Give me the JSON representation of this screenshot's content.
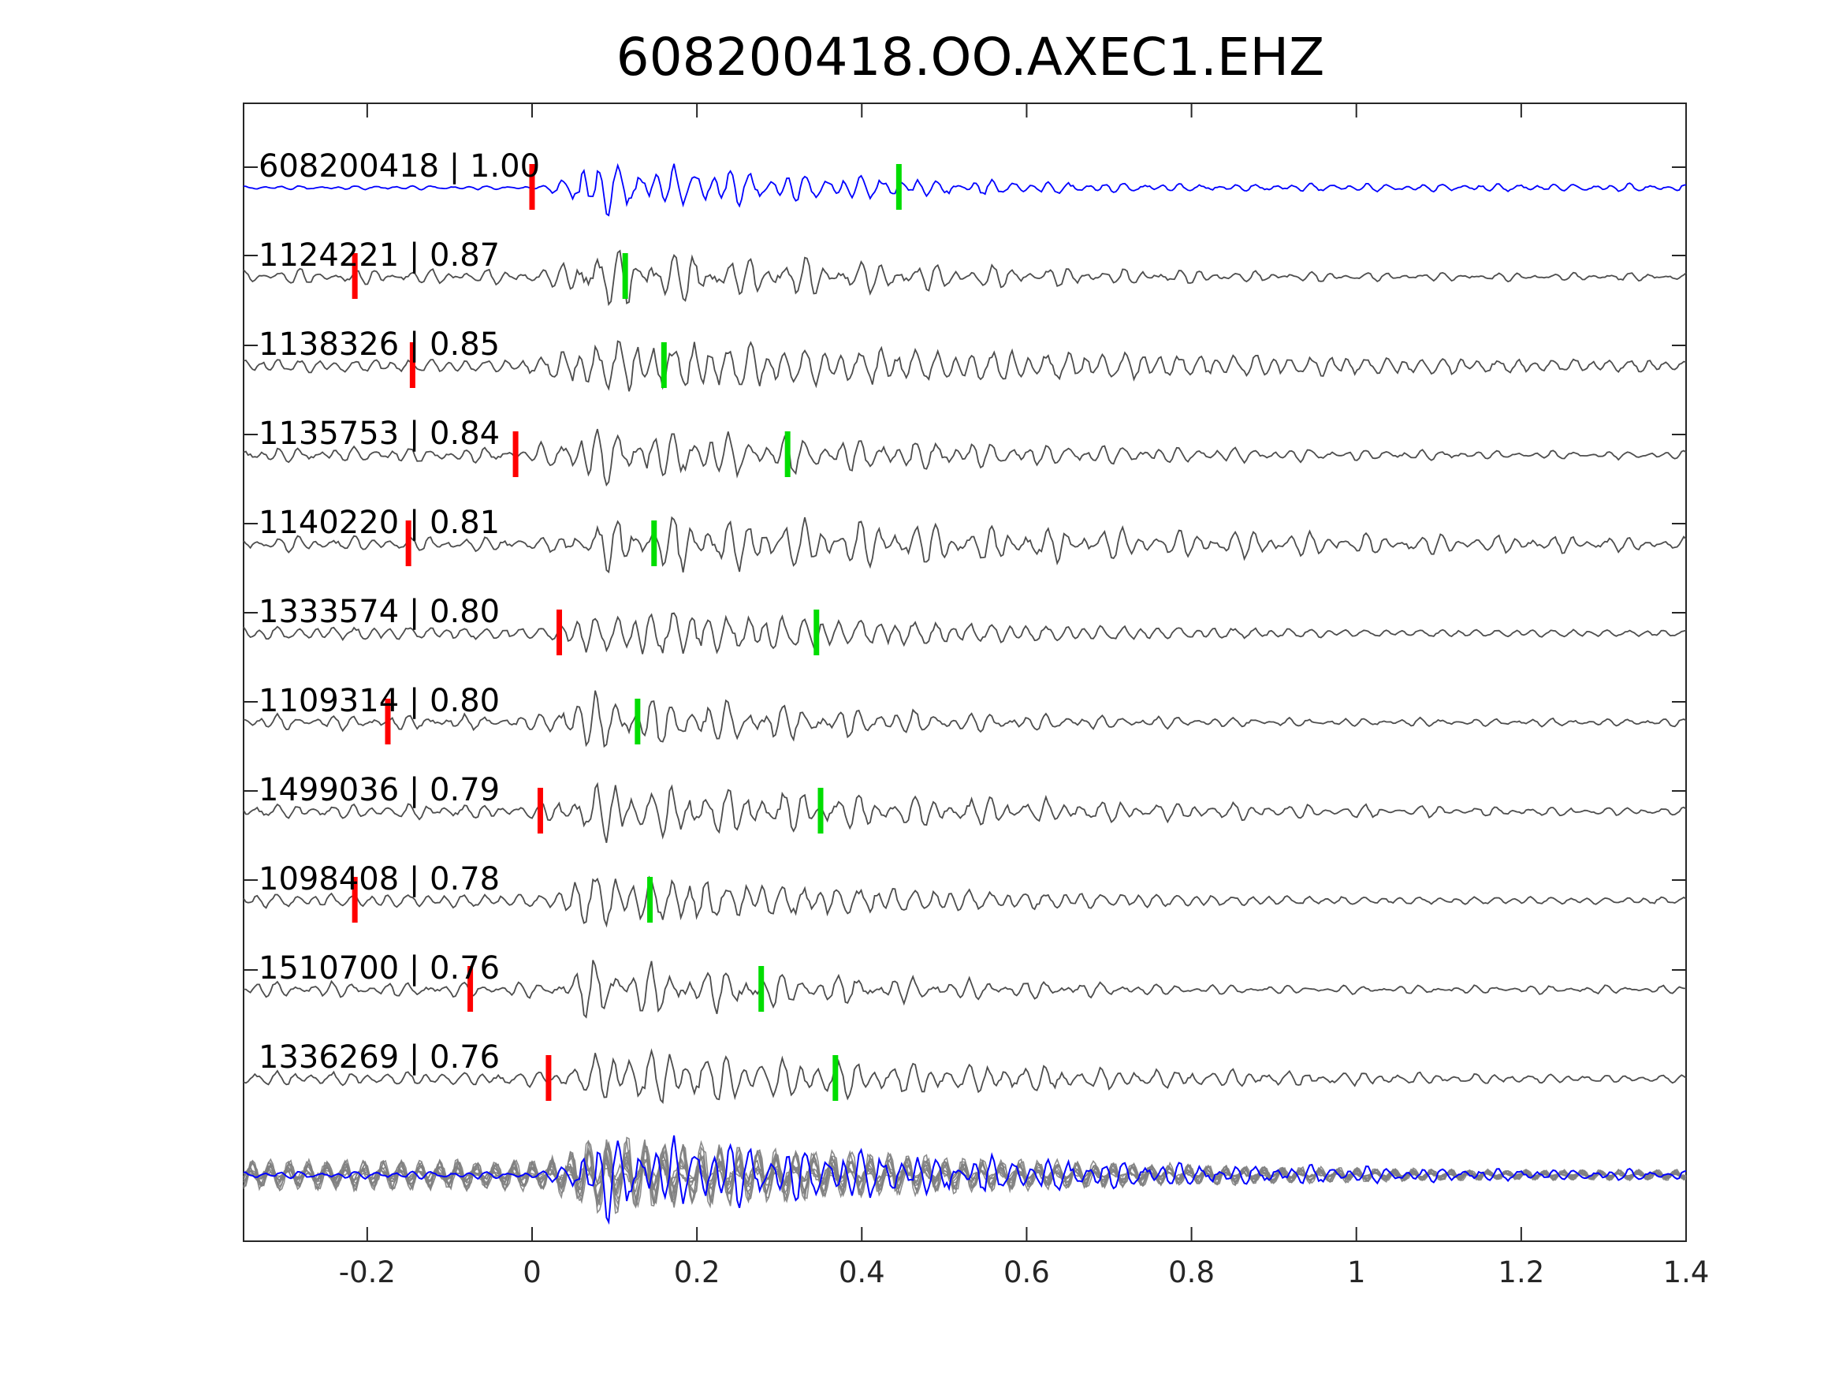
{
  "chart_data": {
    "type": "line",
    "title": "608200418.OO.AXEC1.EHZ",
    "xlabel": "",
    "ylabel": "",
    "xlim": [
      -0.35,
      1.4
    ],
    "x_ticks": [
      -0.2,
      0,
      0.2,
      0.4,
      0.6,
      0.8,
      1,
      1.2,
      1.4
    ],
    "x_tick_labels": [
      "-0.2",
      "0",
      "0.2",
      "0.4",
      "0.6",
      "0.8",
      "1",
      "1.2",
      "1.4"
    ],
    "grid": false,
    "colors": {
      "template": "#0000ff",
      "match": "#4d4d4d",
      "stack": "#808080",
      "p_pick": "#ff0000",
      "s_pick": "#00dd00"
    },
    "series": [
      {
        "label": "608200418 | 1.00",
        "p_pick": 0.0,
        "s_pick": 0.445,
        "onset": 0.02,
        "decay_end": 0.6
      },
      {
        "label": "1124221 | 0.87",
        "p_pick": -0.215,
        "s_pick": 0.113,
        "onset": 0.02,
        "decay_end": 0.8
      },
      {
        "label": "1138326 | 0.85",
        "p_pick": -0.145,
        "s_pick": 0.16,
        "onset": -0.01,
        "decay_end": 1.4
      },
      {
        "label": "1135753 | 0.84",
        "p_pick": -0.02,
        "s_pick": 0.31,
        "onset": 0.0,
        "decay_end": 0.9
      },
      {
        "label": "1140220 | 0.81",
        "p_pick": -0.15,
        "s_pick": 0.148,
        "onset": 0.02,
        "decay_end": 1.4
      },
      {
        "label": "1333574 | 0.80",
        "p_pick": 0.033,
        "s_pick": 0.345,
        "onset": 0.03,
        "decay_end": 0.8
      },
      {
        "label": "1109314 | 0.80",
        "p_pick": -0.175,
        "s_pick": 0.128,
        "onset": 0.01,
        "decay_end": 0.7
      },
      {
        "label": "1499036 | 0.79",
        "p_pick": 0.01,
        "s_pick": 0.35,
        "onset": 0.01,
        "decay_end": 1.0
      },
      {
        "label": "1098408 | 0.78",
        "p_pick": -0.215,
        "s_pick": 0.143,
        "onset": 0.02,
        "decay_end": 0.8
      },
      {
        "label": "1510700 | 0.76",
        "p_pick": -0.075,
        "s_pick": 0.278,
        "onset": 0.02,
        "decay_end": 0.7
      },
      {
        "label": "1336269 | 0.76",
        "p_pick": 0.02,
        "s_pick": 0.368,
        "onset": 0.03,
        "decay_end": 1.0
      }
    ],
    "stack": {
      "label": "",
      "description_series_count": 11
    }
  }
}
